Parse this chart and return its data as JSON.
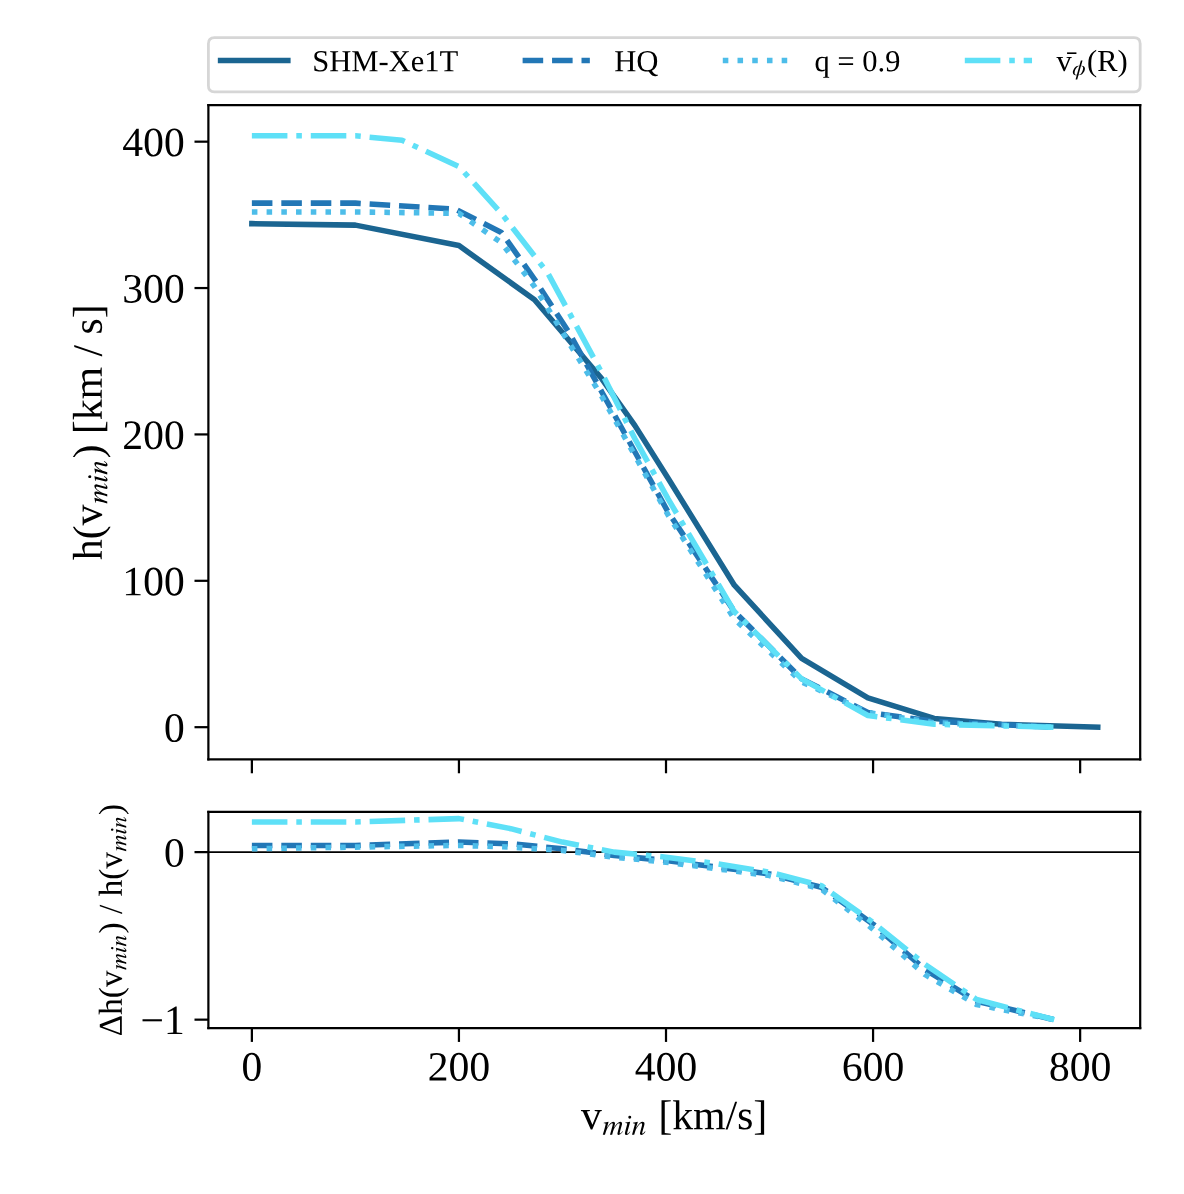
{
  "chart_data": [
    {
      "type": "line",
      "ylabel": "h(v$_{min}$) [km / s]",
      "xlim": [
        -42,
        858
      ],
      "ylim": [
        -22,
        425
      ],
      "xticks": [
        0,
        200,
        400,
        600,
        800
      ],
      "yticks": [
        0,
        100,
        200,
        300,
        400
      ],
      "tick_labels": "y",
      "legend": "top",
      "grid": false,
      "series": [
        {
          "name": "SHM-Xe1T",
          "color": "#1b6591",
          "line_style": "solid",
          "x": [
            0,
            100,
            200,
            273,
            338,
            370,
            402,
            466,
            531,
            595,
            659,
            724,
            817
          ],
          "values": [
            344,
            343,
            329,
            292,
            238,
            206,
            170,
            97,
            47,
            20,
            6,
            2,
            0
          ]
        },
        {
          "name": "HQ",
          "color": "#2277b6",
          "line_style": "dashed",
          "x": [
            0,
            100,
            196,
            241,
            273,
            306,
            338,
            370,
            402,
            466,
            531,
            595,
            659,
            775
          ],
          "values": [
            358,
            358,
            354,
            338,
            306,
            270,
            229,
            188,
            147,
            79,
            33,
            10,
            4,
            0
          ]
        },
        {
          "name": "q = 0.9",
          "color": "#4dbde9",
          "line_style": "dotted",
          "x": [
            0,
            100,
            200,
            241,
            273,
            338,
            402,
            466,
            531,
            595,
            659,
            775
          ],
          "values": [
            352,
            352,
            351,
            331,
            301,
            226,
            145,
            74,
            31,
            10,
            3,
            0
          ]
        },
        {
          "name": "v̄$_{ϕ}$(R)",
          "color": "#5ee0f7",
          "line_style": "dashdot",
          "x": [
            0,
            100,
            145,
            200,
            241,
            286,
            338,
            370,
            402,
            466,
            531,
            595,
            659,
            775
          ],
          "values": [
            404,
            404,
            401,
            383,
            351,
            310,
            242,
            197,
            156,
            79,
            33,
            8,
            2,
            0
          ]
        }
      ]
    },
    {
      "type": "line",
      "xlabel": "v$_{min}$ [km/s]",
      "ylabel": "Δh(v$_{min}$) / h(v$_{min}$)",
      "xlim": [
        -42,
        858
      ],
      "ylim": [
        -1.05,
        0.24
      ],
      "xticks": [
        0,
        200,
        400,
        600,
        800
      ],
      "yticks": [
        {
          "value": -1,
          "label": "−1"
        },
        0
      ],
      "grid": false,
      "ref_lines": [
        {
          "axis": "y",
          "value": 0,
          "color": "#000000"
        }
      ],
      "series": [
        {
          "color": "#2277b6",
          "line_style": "dashed",
          "x": [
            0,
            100,
            200,
            250,
            300,
            350,
            400,
            450,
            500,
            550,
            600,
            650,
            700,
            775
          ],
          "values": [
            0.04,
            0.04,
            0.06,
            0.05,
            0.02,
            -0.02,
            -0.05,
            -0.09,
            -0.13,
            -0.21,
            -0.43,
            -0.7,
            -0.89,
            -1
          ]
        },
        {
          "color": "#4dbde9",
          "line_style": "dotted",
          "x": [
            0,
            100,
            200,
            250,
            300,
            350,
            400,
            450,
            500,
            550,
            600,
            650,
            700,
            775
          ],
          "values": [
            0.02,
            0.03,
            0.04,
            0.03,
            0.01,
            -0.03,
            -0.06,
            -0.1,
            -0.14,
            -0.22,
            -0.46,
            -0.73,
            -0.91,
            -1
          ]
        },
        {
          "color": "#5ee0f7",
          "line_style": "dashdot",
          "x": [
            0,
            100,
            200,
            250,
            300,
            350,
            400,
            450,
            500,
            550,
            600,
            650,
            700,
            775
          ],
          "values": [
            0.18,
            0.18,
            0.2,
            0.14,
            0.06,
            0,
            -0.03,
            -0.07,
            -0.12,
            -0.2,
            -0.42,
            -0.67,
            -0.88,
            -1
          ]
        }
      ]
    }
  ]
}
